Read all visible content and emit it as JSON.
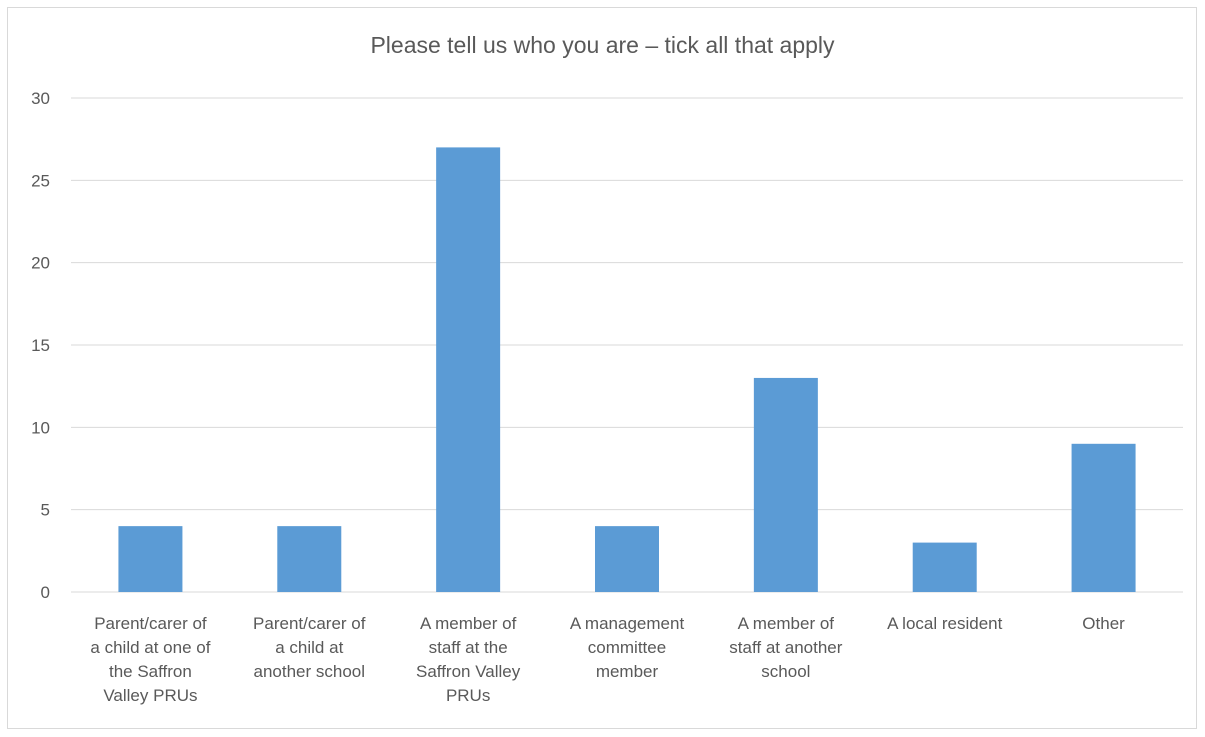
{
  "chart_data": {
    "type": "bar",
    "title": "Please tell us who you are – tick all that apply",
    "xlabel": "",
    "ylabel": "",
    "categories": [
      [
        "Parent/carer of",
        "a child at one of",
        "the Saffron",
        "Valley PRUs"
      ],
      [
        "Parent/carer of",
        "a child at",
        "another school"
      ],
      [
        "A member of",
        "staff at the",
        "Saffron Valley",
        "PRUs"
      ],
      [
        "A management",
        "committee",
        "member"
      ],
      [
        "A member of",
        "staff at another",
        "school"
      ],
      [
        "A local resident"
      ],
      [
        "Other"
      ]
    ],
    "values": [
      4,
      4,
      27,
      4,
      13,
      3,
      9
    ],
    "ylim": [
      0,
      30
    ],
    "yticks": [
      0,
      5,
      10,
      15,
      20,
      25,
      30
    ],
    "grid": true,
    "bar_color": "#5b9bd5",
    "grid_color": "#d9d9d9",
    "text_color": "#595959"
  }
}
